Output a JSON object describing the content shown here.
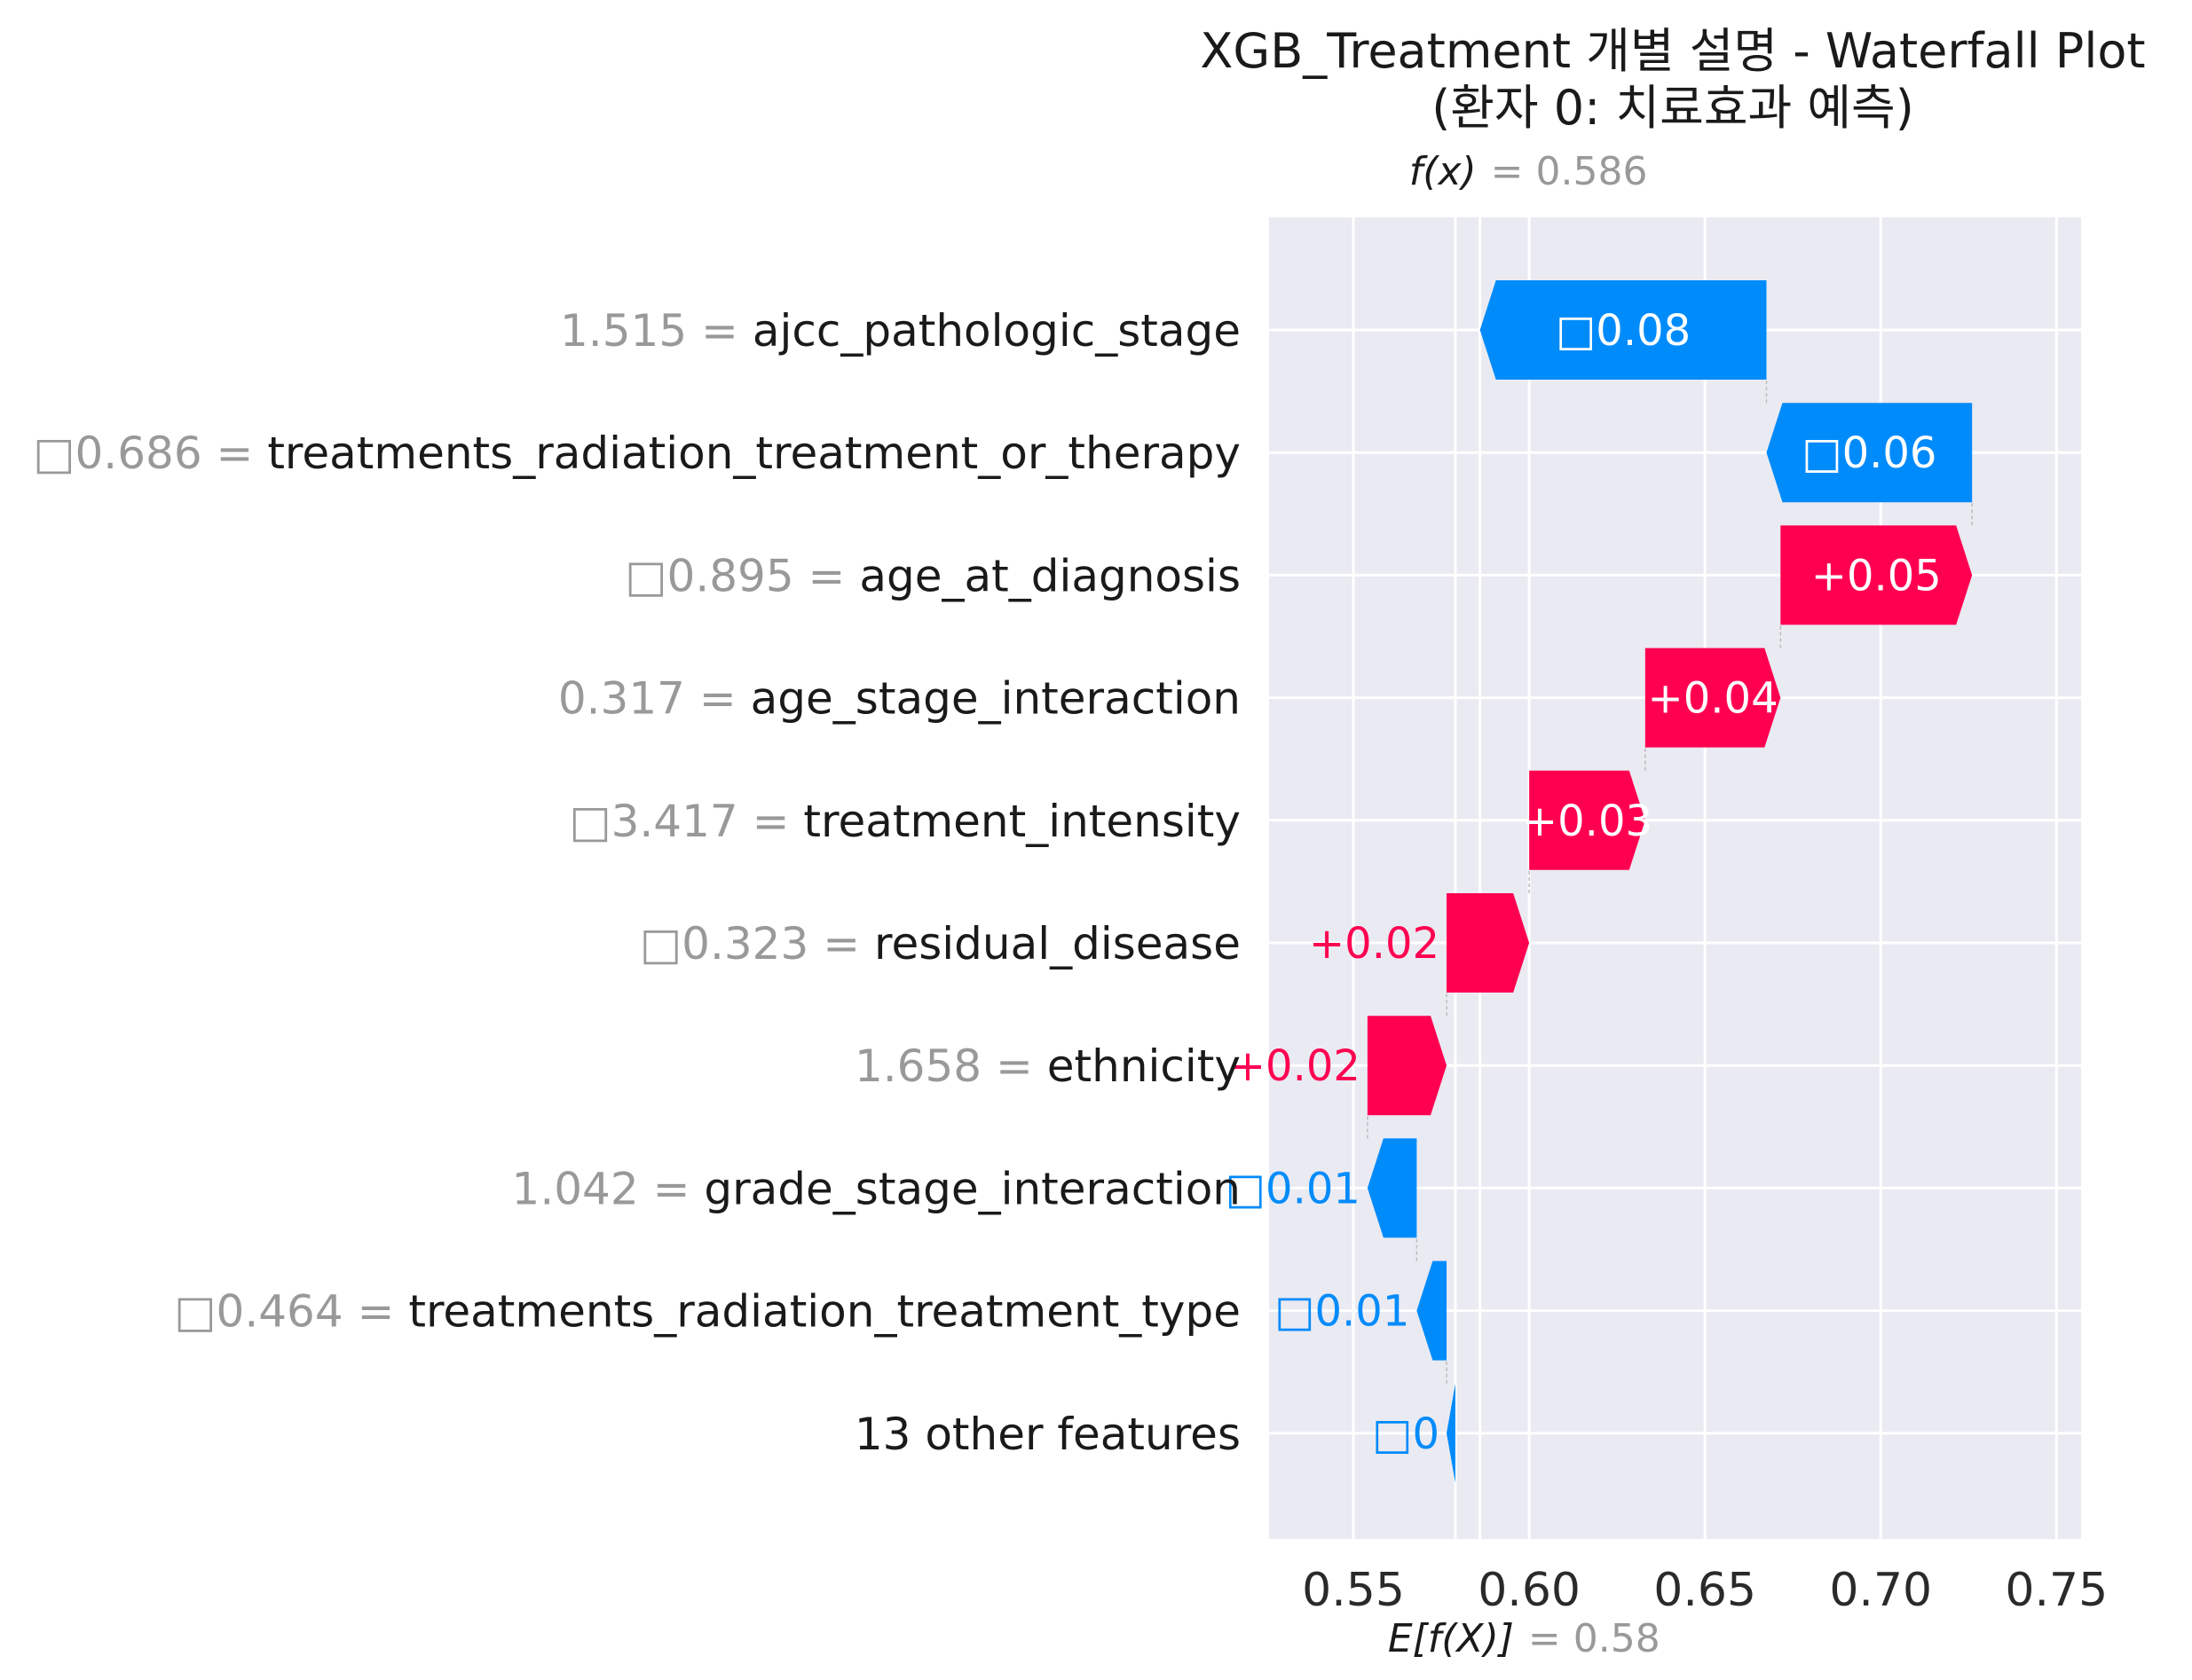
{
  "chart_data": {
    "type": "waterfall",
    "title": "XGB_Treatment 개별 설명 - Waterfall Plot",
    "subtitle": "(환자 0: 치료효과 예측)",
    "fx_label": "f(x)",
    "fx_value": "= 0.586",
    "fx": 0.586,
    "base_label": "E[f(X)]",
    "base_value_text": "= 0.58",
    "base_value": 0.579,
    "xlim": [
      0.526,
      0.757
    ],
    "xticks": [
      "0.55",
      "0.60",
      "0.65",
      "0.70",
      "0.75"
    ],
    "xtick_values": [
      0.55,
      0.6,
      0.65,
      0.7,
      0.75
    ],
    "grid": true,
    "colors": {
      "positive": "#ff0051",
      "negative": "#008bfb",
      "background": "#eaeaf2",
      "value_text": "#999999",
      "name_text": "#1a1a1a"
    },
    "features": [
      {
        "value": "1.515",
        "name": "ajcc_pathologic_stage",
        "label": "□0.08",
        "shap": -0.0815
      },
      {
        "value": "□0.686",
        "name": "treatments_radiation_treatment_or_therapy",
        "label": "□0.06",
        "shap": -0.0585
      },
      {
        "value": "□0.895",
        "name": "age_at_diagnosis",
        "label": "+0.05",
        "shap": 0.0545
      },
      {
        "value": "0.317",
        "name": "age_stage_interaction",
        "label": "+0.04",
        "shap": 0.0385
      },
      {
        "value": "□3.417",
        "name": "treatment_intensity",
        "label": "+0.03",
        "shap": 0.033
      },
      {
        "value": "□0.323",
        "name": "residual_disease",
        "label": "+0.02",
        "shap": 0.0235
      },
      {
        "value": "1.658",
        "name": "ethnicity",
        "label": "+0.02",
        "shap": 0.0225
      },
      {
        "value": "1.042",
        "name": "grade_stage_interaction",
        "label": "□0.01",
        "shap": -0.014
      },
      {
        "value": "□0.464",
        "name": "treatments_radiation_treatment_type",
        "label": "□0.01",
        "shap": -0.0085
      },
      {
        "value": "",
        "name": "13 other features",
        "label": "□0",
        "shap": -0.0025
      }
    ]
  }
}
